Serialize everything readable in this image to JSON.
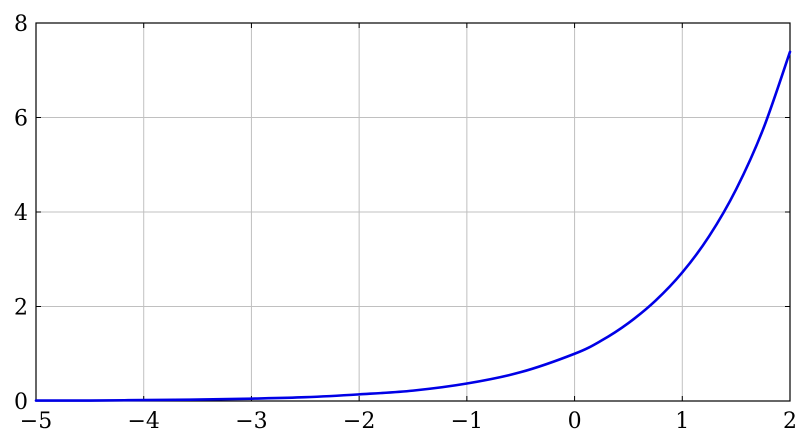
{
  "chart_data": {
    "type": "line",
    "title": "",
    "xlabel": "",
    "ylabel": "",
    "xlim": [
      -5,
      2
    ],
    "ylim": [
      0,
      8
    ],
    "grid": true,
    "legend": "none",
    "x_ticks": [
      "−5",
      "−4",
      "−3",
      "−2",
      "−1",
      "0",
      "1",
      "2"
    ],
    "y_ticks": [
      "0",
      "2",
      "4",
      "6",
      "8"
    ],
    "series": [
      {
        "color": "#0000e6",
        "x": [
          -5,
          -4.5,
          -4,
          -3.5,
          -3,
          -2.5,
          -2,
          -1.5,
          -1,
          -0.5,
          0,
          0.25,
          0.5,
          0.75,
          1,
          1.25,
          1.5,
          1.75,
          2
        ],
        "y": [
          0.01,
          0.01,
          0.02,
          0.03,
          0.05,
          0.08,
          0.14,
          0.22,
          0.37,
          0.61,
          1.0,
          1.28,
          1.65,
          2.12,
          2.72,
          3.49,
          4.48,
          5.75,
          7.39
        ]
      }
    ]
  }
}
